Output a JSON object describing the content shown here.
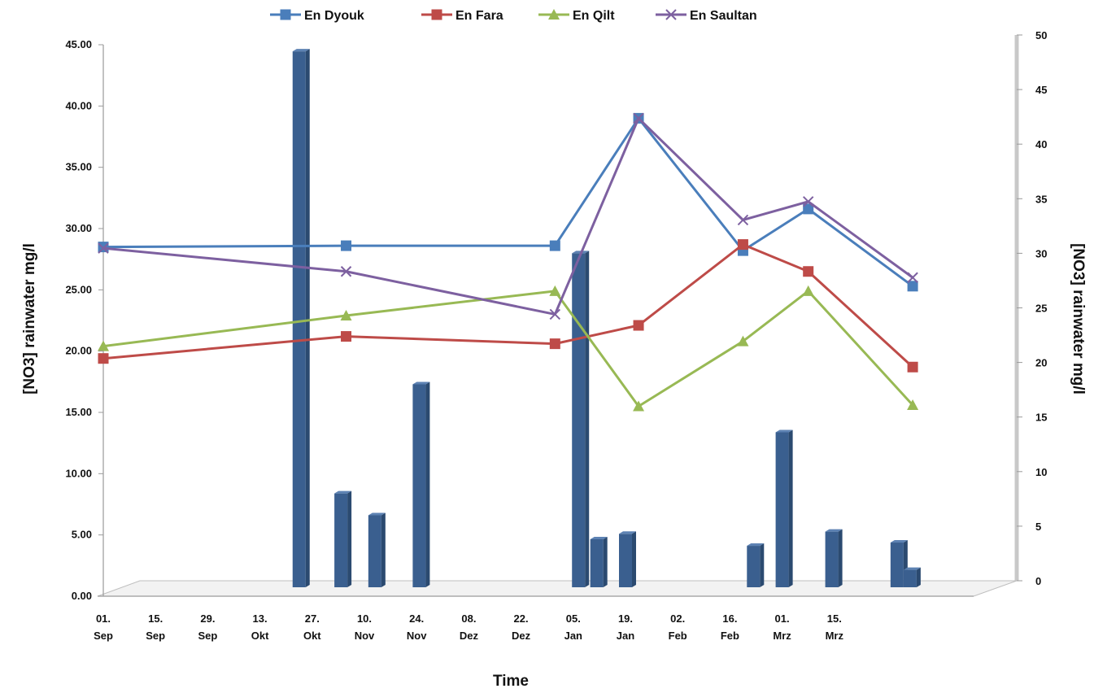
{
  "chart_data": {
    "type": "line",
    "title": "",
    "xlabel": "Time",
    "ylabel_left": "[NO3] rainwater  mg/l",
    "ylabel_right": "[NO3] rainwater  mg/l",
    "x_ticks": [
      "01.\nSep",
      "15.\nSep",
      "29.\nSep",
      "13.\nOkt",
      "27.\nOkt",
      "10.\nNov",
      "24.\nNov",
      "08.\nDez",
      "22.\nDez",
      "05.\nJan",
      "19.\nJan",
      "02.\nFeb",
      "16.\nFeb",
      "01.\nMrz",
      "15.\nMrz"
    ],
    "y_left": {
      "min": 0,
      "max": 45,
      "step": 5,
      "ticks": [
        "0.00",
        "5.00",
        "10.00",
        "15.00",
        "20.00",
        "25.00",
        "30.00",
        "35.00",
        "40.00",
        "45.00"
      ]
    },
    "y_right": {
      "min": 0,
      "max": 50,
      "step": 5,
      "ticks": [
        "0",
        "5",
        "10",
        "15",
        "20",
        "25",
        "30",
        "35",
        "40",
        "45",
        "50"
      ]
    },
    "legend_position": "top",
    "grid": false,
    "series": [
      {
        "name": "En Dyouk",
        "color": "#4a7ebb",
        "marker": "square",
        "axis": "left",
        "x": [
          0,
          4.65,
          8.65,
          10.25,
          12.25,
          13.5,
          15.5
        ],
        "y": [
          28.5,
          28.6,
          28.6,
          39.0,
          28.2,
          31.6,
          25.3
        ]
      },
      {
        "name": "En Fara",
        "color": "#be4b48",
        "marker": "square",
        "axis": "left",
        "x": [
          0,
          4.65,
          8.65,
          10.25,
          12.25,
          13.5,
          15.5
        ],
        "y": [
          19.4,
          21.2,
          20.6,
          22.1,
          28.7,
          26.5,
          18.7
        ]
      },
      {
        "name": "En Qilt",
        "color": "#98b954",
        "marker": "triangle",
        "axis": "left",
        "x": [
          0,
          4.65,
          8.65,
          10.25,
          12.25,
          13.5,
          15.5
        ],
        "y": [
          20.4,
          22.9,
          24.9,
          15.5,
          20.8,
          24.9,
          15.6
        ]
      },
      {
        "name": "En Saultan",
        "color": "#7d60a0",
        "marker": "x",
        "axis": "left",
        "x": [
          0,
          4.65,
          8.65,
          10.25,
          12.25,
          13.5,
          15.5
        ],
        "y": [
          28.4,
          26.5,
          23.0,
          39.0,
          30.7,
          32.2,
          26.0
        ]
      }
    ],
    "rainfall_bars": {
      "axis": "right",
      "color": "#3a5f8f",
      "x": [
        3.75,
        4.55,
        5.2,
        6.05,
        9.1,
        9.45,
        10.0,
        12.45,
        13.0,
        13.95,
        15.2,
        15.45
      ],
      "values": [
        48.5,
        8.0,
        6.0,
        18.0,
        30.0,
        3.8,
        4.3,
        3.2,
        13.6,
        4.5,
        3.5,
        1.0
      ]
    }
  }
}
